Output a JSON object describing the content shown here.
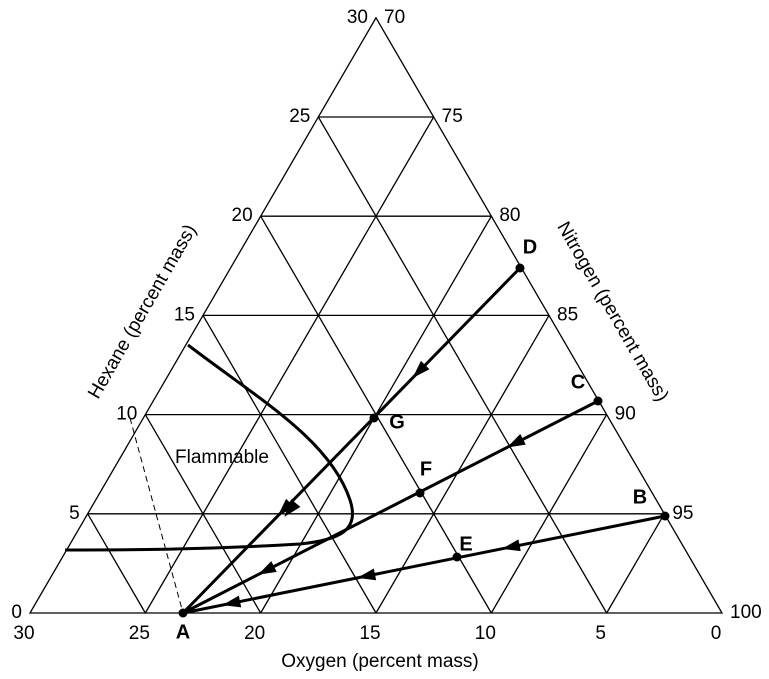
{
  "axis_labels": {
    "hexane": "Hexane (percent mass)",
    "nitrogen": "Nitrogen (percent mass)",
    "oxygen": "Oxygen (percent mass)"
  },
  "hexane_ticks": [
    "0",
    "5",
    "10",
    "15",
    "20",
    "25",
    "30"
  ],
  "nitrogen_ticks": [
    "100",
    "95",
    "90",
    "85",
    "80",
    "75",
    "70"
  ],
  "oxygen_ticks": [
    "30",
    "25",
    "20",
    "15",
    "10",
    "5",
    "0"
  ],
  "region_label": "Flammable",
  "points": [
    {
      "label": "A"
    },
    {
      "label": "B"
    },
    {
      "label": "C"
    },
    {
      "label": "D"
    },
    {
      "label": "E"
    },
    {
      "label": "F"
    },
    {
      "label": "G"
    }
  ]
}
